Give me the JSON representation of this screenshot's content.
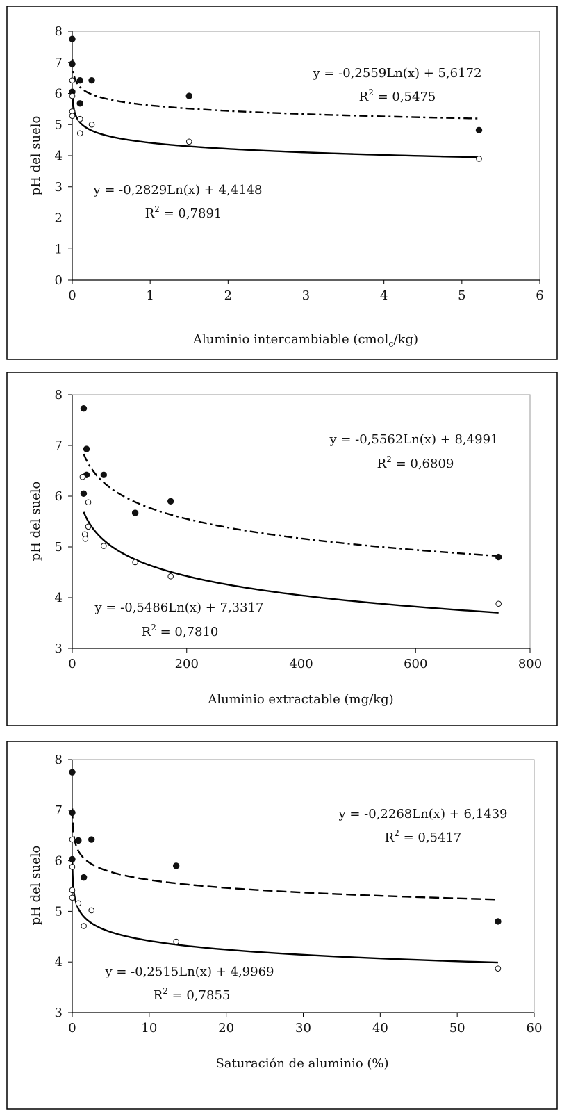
{
  "chart_data": [
    {
      "type": "scatter",
      "title": "",
      "xlabel": "Aluminio intercambiable (cmol",
      "xlabel_sub": "c",
      "xlabel_end": "/kg)",
      "ylabel": "pH del suelo",
      "xlim": [
        0,
        6
      ],
      "ylim": [
        0,
        8
      ],
      "xticks": [
        "0",
        "1",
        "2",
        "3",
        "4",
        "5",
        "6"
      ],
      "yticks": [
        "0",
        "1",
        "2",
        "3",
        "4",
        "5",
        "6",
        "7",
        "8"
      ],
      "grid": false,
      "series": [
        {
          "marker": "filled",
          "points": [
            [
              0.0,
              7.75
            ],
            [
              0.0,
              6.95
            ],
            [
              0.0,
              6.05
            ],
            [
              0.1,
              6.42
            ],
            [
              0.1,
              5.68
            ],
            [
              0.25,
              6.42
            ],
            [
              1.5,
              5.92
            ],
            [
              5.22,
              4.82
            ]
          ],
          "fit": {
            "a": -0.2559,
            "b": 5.6172,
            "style": "dashdot",
            "xmin": 0.003,
            "xmax": 5.22
          },
          "equation": "y = -0,2559Ln(x) + 5,6172",
          "r2_label": "R",
          "r2_value": " = 0,5475"
        },
        {
          "marker": "open",
          "points": [
            [
              0.0,
              6.42
            ],
            [
              0.0,
              5.92
            ],
            [
              0.0,
              5.42
            ],
            [
              0.0,
              5.28
            ],
            [
              0.1,
              5.18
            ],
            [
              0.1,
              4.72
            ],
            [
              0.25,
              5.0
            ],
            [
              1.5,
              4.45
            ],
            [
              5.22,
              3.9
            ]
          ],
          "fit": {
            "a": -0.2829,
            "b": 4.4148,
            "style": "solid",
            "xmin": 0.003,
            "xmax": 5.22
          },
          "equation": "y = -0,2829Ln(x) + 4,4148",
          "r2_label": "R",
          "r2_value": " = 0,7891"
        }
      ]
    },
    {
      "type": "scatter",
      "title": "",
      "xlabel": "Aluminio extractable (mg/kg)",
      "ylabel": "pH del suelo",
      "xlim": [
        0,
        800
      ],
      "ylim": [
        3,
        8
      ],
      "xticks": [
        "0",
        "200",
        "400",
        "600",
        "800"
      ],
      "yticks": [
        "3",
        "4",
        "5",
        "6",
        "7",
        "8"
      ],
      "grid": false,
      "series": [
        {
          "marker": "filled",
          "points": [
            [
              20,
              7.73
            ],
            [
              25,
              6.93
            ],
            [
              20,
              6.05
            ],
            [
              25,
              6.42
            ],
            [
              55,
              6.42
            ],
            [
              110,
              5.67
            ],
            [
              172,
              5.9
            ],
            [
              745,
              4.8
            ]
          ],
          "fit": {
            "a": -0.5562,
            "b": 8.4991,
            "style": "dashdot",
            "xmin": 20,
            "xmax": 745
          },
          "equation": "y = -0,5562Ln(x) + 8,4991",
          "r2_label": "R",
          "r2_value": " = 0,6809"
        },
        {
          "marker": "open",
          "points": [
            [
              18,
              6.38
            ],
            [
              28,
              5.88
            ],
            [
              22,
              5.25
            ],
            [
              23,
              5.16
            ],
            [
              28,
              5.4
            ],
            [
              55,
              5.02
            ],
            [
              110,
              4.7
            ],
            [
              172,
              4.42
            ],
            [
              745,
              3.88
            ]
          ],
          "fit": {
            "a": -0.5486,
            "b": 7.3317,
            "style": "solid",
            "xmin": 20,
            "xmax": 745
          },
          "equation": "y = -0,5486Ln(x) + 7,3317",
          "r2_label": "R",
          "r2_value": " = 0,7810"
        }
      ]
    },
    {
      "type": "scatter",
      "title": "",
      "xlabel": "Saturación de aluminio (%)",
      "ylabel": "pH del suelo",
      "xlim": [
        0,
        60
      ],
      "ylim": [
        3,
        8
      ],
      "xticks": [
        "0",
        "10",
        "20",
        "30",
        "40",
        "50",
        "60"
      ],
      "yticks": [
        "3",
        "4",
        "5",
        "6",
        "7",
        "8"
      ],
      "grid": false,
      "series": [
        {
          "marker": "filled",
          "points": [
            [
              0.0,
              7.75
            ],
            [
              0.0,
              6.95
            ],
            [
              0.0,
              6.03
            ],
            [
              0.8,
              6.4
            ],
            [
              1.5,
              5.67
            ],
            [
              2.5,
              6.42
            ],
            [
              13.5,
              5.9
            ],
            [
              55.3,
              4.8
            ]
          ],
          "fit": {
            "a": -0.2268,
            "b": 6.1439,
            "style": "dashed",
            "xmin": 0.02,
            "xmax": 55.3
          },
          "equation": "y = -0,2268Ln(x) + 6,1439",
          "r2_label": "R",
          "r2_value": " = 0,5417"
        },
        {
          "marker": "open",
          "points": [
            [
              0.0,
              6.42
            ],
            [
              0.0,
              5.88
            ],
            [
              0.0,
              5.42
            ],
            [
              0.0,
              5.27
            ],
            [
              0.8,
              5.16
            ],
            [
              1.5,
              4.71
            ],
            [
              2.5,
              5.02
            ],
            [
              13.5,
              4.4
            ],
            [
              55.3,
              3.87
            ]
          ],
          "fit": {
            "a": -0.2515,
            "b": 4.9969,
            "style": "solid",
            "xmin": 0.02,
            "xmax": 55.3
          },
          "equation": "y = -0,2515Ln(x) + 4,9969",
          "r2_label": "R",
          "r2_value": " = 0,7855"
        }
      ]
    }
  ]
}
